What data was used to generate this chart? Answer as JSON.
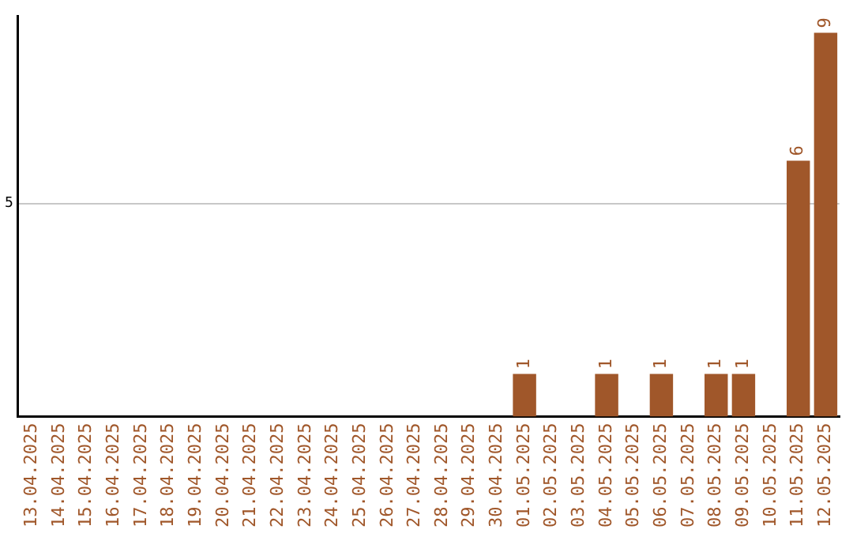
{
  "chart_data": {
    "type": "bar",
    "categories": [
      "13.04.2025",
      "14.04.2025",
      "15.04.2025",
      "16.04.2025",
      "17.04.2025",
      "18.04.2025",
      "19.04.2025",
      "20.04.2025",
      "21.04.2025",
      "22.04.2025",
      "23.04.2025",
      "24.04.2025",
      "25.04.2025",
      "26.04.2025",
      "27.04.2025",
      "28.04.2025",
      "29.04.2025",
      "30.04.2025",
      "01.05.2025",
      "02.05.2025",
      "03.05.2025",
      "04.05.2025",
      "05.05.2025",
      "06.05.2025",
      "07.05.2025",
      "08.05.2025",
      "09.05.2025",
      "10.05.2025",
      "11.05.2025",
      "12.05.2025"
    ],
    "values": [
      null,
      null,
      null,
      null,
      null,
      null,
      null,
      null,
      null,
      null,
      null,
      null,
      null,
      null,
      null,
      null,
      null,
      null,
      1,
      null,
      null,
      1,
      null,
      1,
      null,
      1,
      1,
      null,
      6,
      9
    ],
    "color": "#a0572a",
    "ylim": [
      0,
      9.4
    ],
    "yticks": [
      5
    ],
    "grid": "y",
    "data_labels": true,
    "legend": false
  }
}
